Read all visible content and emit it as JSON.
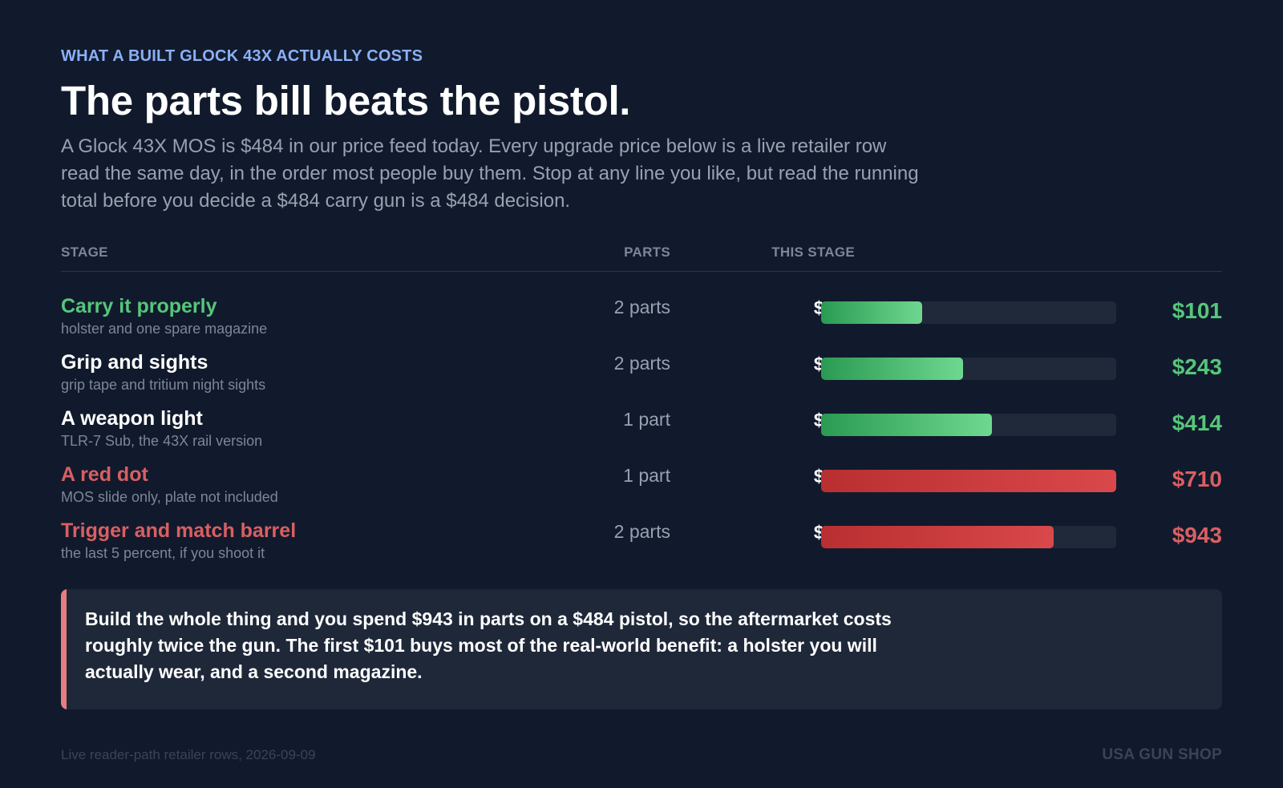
{
  "header": {
    "kicker": "WHAT A BUILT GLOCK 43X ACTUALLY COSTS",
    "headline": "The parts bill beats the pistol.",
    "dek": "A Glock 43X MOS is $484 in our price feed today. Every upgrade price below is a live retailer row read the same day, in the order most people buy them. Stop at any line you like, but read the running total before you decide a $484 carry gun is a $484 decision."
  },
  "table": {
    "col_stage": "STAGE",
    "col_parts": "PARTS",
    "col_this_stage": "THIS STAGE"
  },
  "colors": {
    "green": "#56c67a",
    "red": "#d95f62",
    "accent": "#8bb0f7",
    "callout_bar": "#e57e80"
  },
  "chart_data": {
    "type": "bar",
    "categories": [
      "Carry it properly",
      "Grip and sights",
      "A weapon light",
      "A red dot",
      "Trigger and match barrel"
    ],
    "series": [
      {
        "name": "THIS STAGE",
        "values": [
          101,
          142,
          171,
          296,
          233
        ]
      }
    ],
    "running_totals": [
      101,
      243,
      414,
      710,
      943
    ],
    "xlim": [
      0,
      296
    ]
  },
  "rows": [
    {
      "name": "Carry it properly",
      "sub": "holster and one spare magazine",
      "parts": "2 parts",
      "cost": "$101",
      "total": "$101",
      "tone": "green",
      "value": 101
    },
    {
      "name": "Grip and sights",
      "sub": "grip tape and tritium night sights",
      "parts": "2 parts",
      "cost": "$142",
      "total": "$243",
      "tone": "green",
      "value": 142
    },
    {
      "name": "A weapon light",
      "sub": "TLR-7 Sub, the 43X rail version",
      "parts": "1 part",
      "cost": "$171",
      "total": "$414",
      "tone": "green",
      "value": 171
    },
    {
      "name": "A red dot",
      "sub": "MOS slide only, plate not included",
      "parts": "1 part",
      "cost": "$296",
      "total": "$710",
      "tone": "red",
      "value": 296
    },
    {
      "name": "Trigger and match barrel",
      "sub": "the last 5 percent, if you shoot it",
      "parts": "2 parts",
      "cost": "$233",
      "total": "$943",
      "tone": "red",
      "value": 233
    }
  ],
  "callout": {
    "text": "Build the whole thing and you spend $943 in parts on a $484 pistol, so the aftermarket costs roughly twice the gun. The first $101 buys most of the real-world benefit: a holster you will actually wear, and a second magazine."
  },
  "footer": {
    "source": "Live reader-path retailer rows, 2026-09-09",
    "brand": "USA GUN SHOP"
  }
}
